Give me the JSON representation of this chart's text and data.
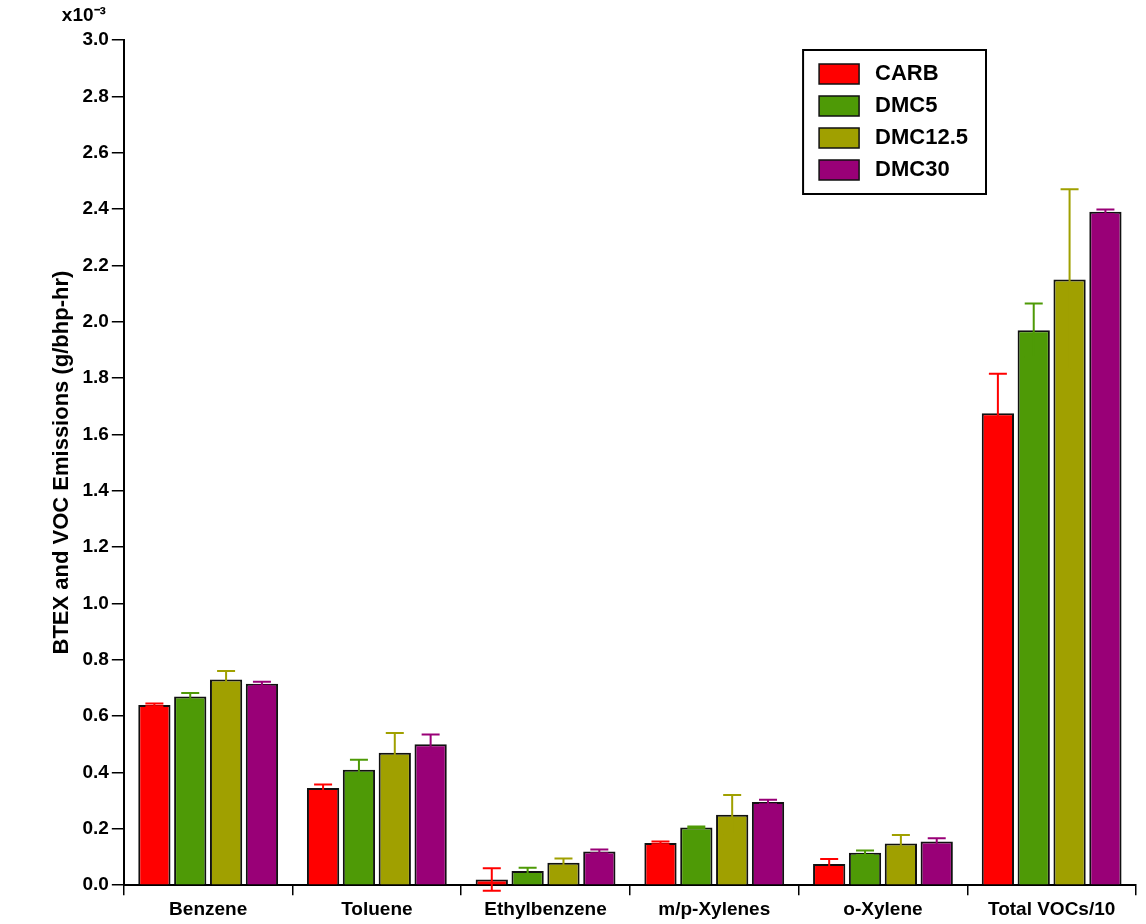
{
  "chart_data": {
    "type": "bar",
    "ylabel": "BTEX and VOC Emissions (g/bhp-hr)",
    "categories": [
      "Benzene",
      "Toluene",
      "Ethylbenzene",
      "m/p-Xylenes",
      "o-Xylene",
      "Total VOCs/10"
    ],
    "series": [
      {
        "name": "CARB",
        "color": "#ff0000",
        "values": [
          0.64,
          0.345,
          0.02,
          0.15,
          0.075,
          1.675
        ],
        "errors": [
          0.005,
          0.012,
          0.04,
          0.005,
          0.018,
          0.14
        ]
      },
      {
        "name": "DMC5",
        "color": "#4e9a06",
        "values": [
          0.67,
          0.41,
          0.05,
          0.205,
          0.115,
          1.97
        ],
        "errors": [
          0.012,
          0.035,
          0.012,
          0.003,
          0.008,
          0.095
        ]
      },
      {
        "name": "DMC12.5",
        "color": "#a0a000",
        "values": [
          0.73,
          0.47,
          0.08,
          0.25,
          0.148,
          2.15
        ],
        "errors": [
          0.03,
          0.07,
          0.015,
          0.07,
          0.03,
          0.32
        ]
      },
      {
        "name": "DMC30",
        "color": "#990077",
        "values": [
          0.715,
          0.5,
          0.12,
          0.295,
          0.155,
          2.39
        ],
        "errors": [
          0.007,
          0.035,
          0.007,
          0.008,
          0.012,
          0.008
        ]
      }
    ],
    "ylim": [
      0,
      3.0
    ],
    "yticks": [
      {
        "value": 0,
        "label": "0.0"
      },
      0.2,
      0.4,
      0.6,
      0.8,
      {
        "value": 1,
        "label": "1.0"
      },
      1.2,
      1.4,
      1.6,
      1.8,
      {
        "value": 2,
        "label": "2.0"
      },
      2.2,
      2.4,
      2.6,
      2.8,
      {
        "value": 3,
        "label": "3.0"
      }
    ],
    "annotations": [
      "x10⁻³"
    ],
    "grid": false,
    "legend": "top right"
  }
}
